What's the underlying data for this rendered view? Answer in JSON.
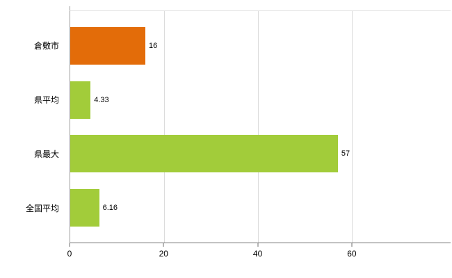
{
  "chart_data": {
    "type": "bar",
    "orientation": "horizontal",
    "title": "",
    "xlabel": "",
    "ylabel": "",
    "legend": "none",
    "grid": "vertical-light-gray",
    "categories": [
      "倉敷市",
      "県平均",
      "県最大",
      "全国平均"
    ],
    "values": [
      16,
      4.33,
      57,
      6.16
    ],
    "value_labels": [
      "16",
      "4.33",
      "57",
      "6.16"
    ],
    "bar_colors": [
      "#e36c09",
      "#a2cc3a",
      "#a2cc3a",
      "#a2cc3a"
    ],
    "xticks": [
      0,
      20,
      40,
      60
    ],
    "xtick_labels": [
      "0",
      "20",
      "40",
      "60"
    ],
    "xlim": [
      0,
      81
    ],
    "colors": {
      "highlight_bar": "#e36c09",
      "default_bar": "#a2cc3a",
      "gridline": "#dcdcdc",
      "axis": "#6e6e6e",
      "text": "#000000",
      "background": "#ffffff"
    }
  }
}
